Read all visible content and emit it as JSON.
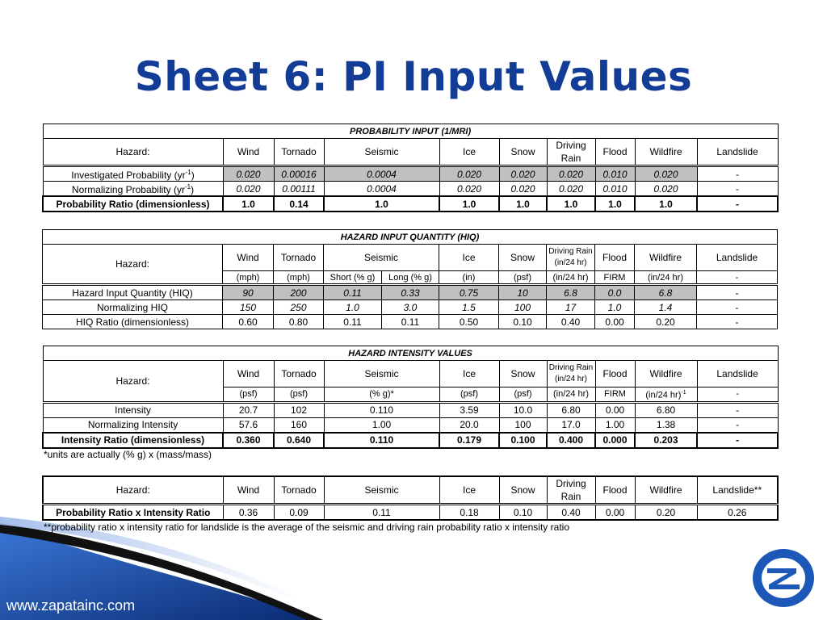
{
  "title": "Sheet 6:  PI Input Values",
  "cols": {
    "hazard": "Hazard:",
    "wind": "Wind",
    "tornado": "Tornado",
    "seismic": "Seismic",
    "ice": "Ice",
    "snow": "Snow",
    "driving_rain": "Driving Rain",
    "flood": "Flood",
    "wildfire": "Wildfire",
    "landslide": "Landslide",
    "landslide2": "Landslide**"
  },
  "prob": {
    "caption": "PROBABILITY INPUT (1/MRI)",
    "rows": [
      {
        "label": "Investigated Probability (yr",
        "sup": "-1",
        "close": ")",
        "values": [
          "0.020",
          "0.00016",
          "0.0004",
          "0.020",
          "0.020",
          "0.020",
          "0.010",
          "0.020",
          "-"
        ]
      },
      {
        "label": "Normalizing Probability (yr",
        "sup": "-1",
        "close": ")",
        "values": [
          "0.020",
          "0.00111",
          "0.0004",
          "0.020",
          "0.020",
          "0.020",
          "0.010",
          "0.020",
          "-"
        ]
      },
      {
        "label": "Probability Ratio (dimensionless)",
        "values": [
          "1.0",
          "0.14",
          "1.0",
          "1.0",
          "1.0",
          "1.0",
          "1.0",
          "1.0",
          "-"
        ]
      }
    ]
  },
  "hiq": {
    "caption": "HAZARD INPUT QUANTITY (HIQ)",
    "driving_rain": "Driving Rain (in/24 hr)",
    "units": [
      "(mph)",
      "(mph)",
      "Short (% g)",
      "Long (% g)",
      "(in)",
      "(psf)",
      "(in/24 hr)",
      "FIRM",
      "(in/24 hr)",
      "-"
    ],
    "rows": [
      {
        "label": "Hazard Input Quantity (HIQ)",
        "values": [
          "90",
          "200",
          "0.11",
          "0.33",
          "0.75",
          "10",
          "6.8",
          "0.0",
          "6.8",
          "-"
        ]
      },
      {
        "label": "Normalizing HIQ",
        "values": [
          "150",
          "250",
          "1.0",
          "3.0",
          "1.5",
          "100",
          "17",
          "1.0",
          "1.4",
          "-"
        ]
      },
      {
        "label": "HIQ Ratio (dimensionless)",
        "values": [
          "0.60",
          "0.80",
          "0.11",
          "0.11",
          "0.50",
          "0.10",
          "0.40",
          "0.00",
          "0.20",
          "-"
        ]
      }
    ]
  },
  "intensity": {
    "caption": "HAZARD INTENSITY VALUES",
    "driving_rain": "Driving Rain (in/24 hr)",
    "units": [
      "(psf)",
      "(psf)",
      "(% g)*",
      "(psf)",
      "(psf)",
      "(in/24 hr)",
      "FIRM",
      "(in/24 hr)",
      "-1",
      "-"
    ],
    "rows": [
      {
        "label": "Intensity",
        "values": [
          "20.7",
          "102",
          "0.110",
          "3.59",
          "10.0",
          "6.80",
          "0.00",
          "6.80",
          "-"
        ]
      },
      {
        "label": "Normalizing Intensity",
        "values": [
          "57.6",
          "160",
          "1.00",
          "20.0",
          "100",
          "17.0",
          "1.00",
          "1.38",
          "-"
        ]
      },
      {
        "label": "Intensity Ratio (dimensionless)",
        "values": [
          "0.360",
          "0.640",
          "0.110",
          "0.179",
          "0.100",
          "0.400",
          "0.000",
          "0.203",
          "-"
        ]
      }
    ],
    "note": "*units are actually (% g) x (mass/mass)"
  },
  "summary": {
    "row_label": "Probability Ratio x Intensity Ratio",
    "values": [
      "0.36",
      "0.09",
      "0.11",
      "0.18",
      "0.10",
      "0.40",
      "0.00",
      "0.20",
      "0.26"
    ],
    "note": "**probability ratio x intensity ratio for landslide is the average of the seismic and driving rain probability ratio x intensity ratio"
  },
  "footer": {
    "url": "www.zapatainc.com",
    "logo_icon": "zapata-z-logo-icon"
  },
  "colors": {
    "title": "#123c96",
    "swoosh_dark": "#0a2a72",
    "swoosh_light": "#2a64c8",
    "gray_cell": "#c0c0c0"
  }
}
